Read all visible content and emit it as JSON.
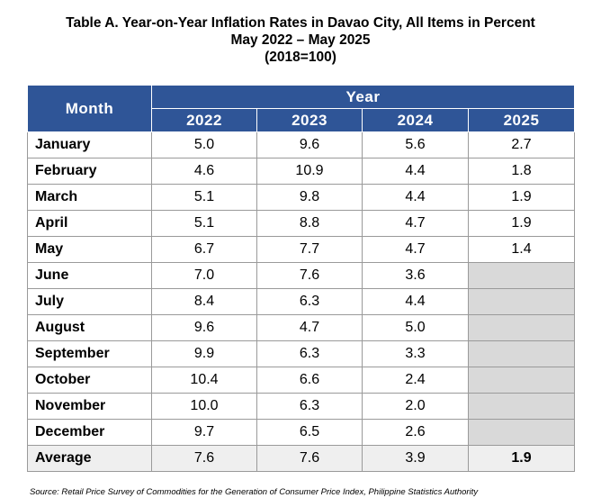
{
  "title": {
    "line1": "Table A. Year-on-Year Inflation Rates in Davao City, All Items in Percent",
    "line2": "May 2022 – May 2025",
    "line3": "(2018=100)"
  },
  "table": {
    "month_header": "Month",
    "year_header": "Year",
    "years": [
      "2022",
      "2023",
      "2024",
      "2025"
    ],
    "rows": [
      {
        "month": "January",
        "values": [
          "5.0",
          "9.6",
          "5.6",
          "2.7"
        ]
      },
      {
        "month": "February",
        "values": [
          "4.6",
          "10.9",
          "4.4",
          "1.8"
        ]
      },
      {
        "month": "March",
        "values": [
          "5.1",
          "9.8",
          "4.4",
          "1.9"
        ]
      },
      {
        "month": "April",
        "values": [
          "5.1",
          "8.8",
          "4.7",
          "1.9"
        ]
      },
      {
        "month": "May",
        "values": [
          "6.7",
          "7.7",
          "4.7",
          "1.4"
        ]
      },
      {
        "month": "June",
        "values": [
          "7.0",
          "7.6",
          "3.6",
          ""
        ]
      },
      {
        "month": "July",
        "values": [
          "8.4",
          "6.3",
          "4.4",
          ""
        ]
      },
      {
        "month": "August",
        "values": [
          "9.6",
          "4.7",
          "5.0",
          ""
        ]
      },
      {
        "month": "September",
        "values": [
          "9.9",
          "6.3",
          "3.3",
          ""
        ]
      },
      {
        "month": "October",
        "values": [
          "10.4",
          "6.6",
          "2.4",
          ""
        ]
      },
      {
        "month": "November",
        "values": [
          "10.0",
          "6.3",
          "2.0",
          ""
        ]
      },
      {
        "month": "December",
        "values": [
          "9.7",
          "6.5",
          "2.6",
          ""
        ]
      }
    ],
    "average": {
      "label": "Average",
      "values": [
        "7.6",
        "7.6",
        "3.9",
        "1.9"
      ]
    }
  },
  "source": "Source: Retail Price Survey of Commodities for the Generation of Consumer Price Index, Philippine Statistics Authority",
  "colors": {
    "header_bg": "#2f5597",
    "blank_cell": "#d9d9d9"
  }
}
